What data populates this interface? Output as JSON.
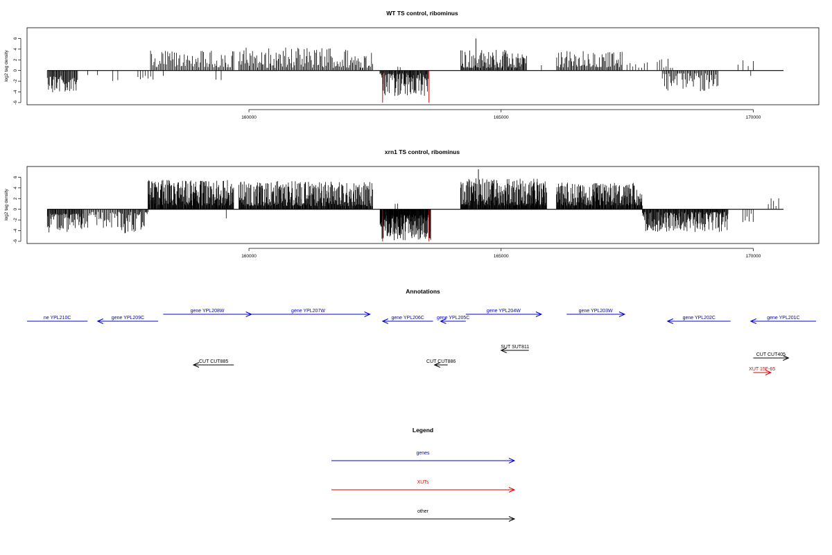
{
  "panels": [
    {
      "title": "WT TS control, ribominus",
      "ylabel": "log2 tag density",
      "y_ticks": [
        -6,
        -4,
        -2,
        0,
        2,
        4,
        6
      ],
      "x_ticks": [
        160000,
        165000,
        170000
      ],
      "mark_color": "#000000",
      "highlight_color": "#cc0000",
      "chart_data": {
        "type": "bar",
        "title": "WT TS control, ribominus",
        "xlabel": "",
        "ylabel": "log2 tag density",
        "xlim": [
          155600,
          171300
        ],
        "ylim": [
          -6.4,
          8
        ],
        "grid": false,
        "segments": [
          {
            "x0": 156000,
            "x1": 156600,
            "sign": -1,
            "count": 45,
            "min": 1.0,
            "max": 4.2
          },
          {
            "x0": 156800,
            "x1": 157000,
            "sign": -1,
            "count": 2,
            "min": 0.8,
            "max": 1.2
          },
          {
            "x0": 157300,
            "x1": 157400,
            "sign": -1,
            "count": 2,
            "min": 1.3,
            "max": 2.0
          },
          {
            "x0": 157800,
            "x1": 158100,
            "sign": -1,
            "count": 7,
            "min": 1.0,
            "max": 1.8
          },
          {
            "x0": 158300,
            "x1": 158300,
            "sign": -1,
            "count": 1,
            "min": 1.0,
            "max": 1.0
          },
          {
            "x0": 158050,
            "x1": 159700,
            "sign": 1,
            "count": 75,
            "min": 0.6,
            "max": 3.8
          },
          {
            "x0": 159350,
            "x1": 159450,
            "sign": -1,
            "count": 2,
            "min": 1.5,
            "max": 2.7
          },
          {
            "x0": 159800,
            "x1": 162450,
            "sign": 1,
            "count": 130,
            "min": 0.5,
            "max": 4.3
          },
          {
            "x0": 162600,
            "x1": 163550,
            "sign": -1,
            "count": 90,
            "min": 0.5,
            "max": 4.8
          },
          {
            "x0": 162950,
            "x1": 163000,
            "sign": 1,
            "count": 2,
            "min": 0.6,
            "max": 0.9
          },
          {
            "x0": 164200,
            "x1": 165500,
            "sign": 1,
            "count": 95,
            "min": 0.5,
            "max": 4.0
          },
          {
            "x0": 165800,
            "x1": 165800,
            "sign": 1,
            "count": 1,
            "min": 1.0,
            "max": 1.0
          },
          {
            "x0": 166100,
            "x1": 167400,
            "sign": 1,
            "count": 70,
            "min": 0.6,
            "max": 3.7
          },
          {
            "x0": 167500,
            "x1": 167900,
            "sign": 1,
            "count": 8,
            "min": 0.5,
            "max": 1.6
          },
          {
            "x0": 168100,
            "x1": 168400,
            "sign": 1,
            "count": 8,
            "min": 0.5,
            "max": 2.5
          },
          {
            "x0": 168200,
            "x1": 169300,
            "sign": -1,
            "count": 55,
            "min": 0.5,
            "max": 3.9
          },
          {
            "x0": 169700,
            "x1": 170000,
            "sign": 1,
            "count": 4,
            "min": 0.8,
            "max": 2.0
          },
          {
            "x0": 169950,
            "x1": 169950,
            "sign": -1,
            "count": 1,
            "min": 1.0,
            "max": 1.0
          }
        ],
        "highlights": [
          {
            "x": 162650,
            "value": -6.0
          },
          {
            "x": 163570,
            "value": -6.0
          }
        ],
        "peaks": [
          {
            "x": 164500,
            "value": 6.0
          }
        ]
      }
    },
    {
      "title": "xrn1 TS control, ribominus",
      "ylabel": "log2 tag density",
      "y_ticks": [
        -6,
        -4,
        -2,
        0,
        2,
        4,
        6
      ],
      "x_ticks": [
        160000,
        165000,
        170000
      ],
      "mark_color": "#000000",
      "highlight_color": "#cc0000",
      "chart_data": {
        "type": "bar",
        "title": "xrn1 TS control, ribominus",
        "xlabel": "",
        "ylabel": "log2 tag density",
        "xlim": [
          155600,
          171300
        ],
        "ylim": [
          -6.4,
          8
        ],
        "grid": false,
        "segments": [
          {
            "x0": 156000,
            "x1": 156700,
            "sign": -1,
            "count": 60,
            "min": 0.8,
            "max": 4.5
          },
          {
            "x0": 156700,
            "x1": 157400,
            "sign": -1,
            "count": 35,
            "min": 0.5,
            "max": 3.5
          },
          {
            "x0": 157400,
            "x1": 158000,
            "sign": -1,
            "count": 40,
            "min": 0.5,
            "max": 4.5
          },
          {
            "x0": 158000,
            "x1": 159700,
            "sign": 1,
            "count": 220,
            "min": 0.7,
            "max": 5.5
          },
          {
            "x0": 159550,
            "x1": 159550,
            "sign": -1,
            "count": 1,
            "min": 1.7,
            "max": 1.7
          },
          {
            "x0": 159800,
            "x1": 162450,
            "sign": 1,
            "count": 320,
            "min": 0.6,
            "max": 5.3
          },
          {
            "x0": 162600,
            "x1": 163600,
            "sign": -1,
            "count": 200,
            "min": 1.0,
            "max": 5.8
          },
          {
            "x0": 162900,
            "x1": 162950,
            "sign": 1,
            "count": 2,
            "min": 1.0,
            "max": 2.0
          },
          {
            "x0": 164200,
            "x1": 165900,
            "sign": 1,
            "count": 260,
            "min": 0.7,
            "max": 5.8
          },
          {
            "x0": 166100,
            "x1": 167800,
            "sign": 1,
            "count": 220,
            "min": 0.7,
            "max": 5.0
          },
          {
            "x0": 167800,
            "x1": 169500,
            "sign": -1,
            "count": 180,
            "min": 0.5,
            "max": 4.3
          },
          {
            "x0": 169800,
            "x1": 170000,
            "sign": -1,
            "count": 6,
            "min": 0.8,
            "max": 2.7
          },
          {
            "x0": 170300,
            "x1": 170500,
            "sign": 1,
            "count": 5,
            "min": 0.6,
            "max": 2.6
          }
        ],
        "highlights": [
          {
            "x": 162650,
            "value": -6.0
          },
          {
            "x": 163570,
            "value": -6.0
          }
        ],
        "peaks": [
          {
            "x": 164550,
            "value": 7.5
          }
        ]
      }
    }
  ],
  "annotations": {
    "title": "Annotations",
    "colors": {
      "genes": "#0000cc",
      "XUTs": "#dd0000",
      "other": "#000000"
    },
    "items": [
      {
        "label": "ne YPL210C",
        "x0": 155600,
        "x1": 156800,
        "dir": "none",
        "cls": "genes",
        "row": 0
      },
      {
        "label": "gene YPL209C",
        "x0": 157000,
        "x1": 158200,
        "dir": "left",
        "cls": "genes",
        "row": 0
      },
      {
        "label": "gene YPL208W",
        "x0": 158300,
        "x1": 160050,
        "dir": "right",
        "cls": "genes",
        "row": -1
      },
      {
        "label": "gene YPL207W",
        "x0": 159950,
        "x1": 162400,
        "dir": "right",
        "cls": "genes",
        "row": -1
      },
      {
        "label": "gene YPL206C",
        "x0": 162650,
        "x1": 163650,
        "dir": "left",
        "cls": "genes",
        "row": 0
      },
      {
        "label": "gene YPL205C",
        "x0": 163800,
        "x1": 164300,
        "dir": "left",
        "cls": "genes",
        "row": 0
      },
      {
        "label": "gene YPL204W",
        "x0": 164300,
        "x1": 165800,
        "dir": "right",
        "cls": "genes",
        "row": -1
      },
      {
        "label": "gene YPL203W",
        "x0": 166300,
        "x1": 167450,
        "dir": "right",
        "cls": "genes",
        "row": -1
      },
      {
        "label": "gene YPL202C",
        "x0": 168300,
        "x1": 169550,
        "dir": "left",
        "cls": "genes",
        "row": 0
      },
      {
        "label": "gene YPL201C",
        "x0": 169950,
        "x1": 171300,
        "dir": "left",
        "cls": "genes",
        "row": 0
      },
      {
        "label": "SUT SUT811",
        "x0": 165000,
        "x1": 165550,
        "dir": "left",
        "cls": "other",
        "row": 2
      },
      {
        "label": "CUT CUT885",
        "x0": 158900,
        "x1": 159700,
        "dir": "left",
        "cls": "other",
        "row": 3
      },
      {
        "label": "CUT CUT886",
        "x0": 163680,
        "x1": 163940,
        "dir": "left",
        "cls": "other",
        "row": 3
      },
      {
        "label": "CUT CUT405",
        "x0": 170000,
        "x1": 170700,
        "dir": "right",
        "cls": "other",
        "row": 2.5
      },
      {
        "label": "XUT 15F-65",
        "x0": 170000,
        "x1": 170350,
        "dir": "right",
        "cls": "XUTs",
        "row": 3.6
      }
    ]
  },
  "legend": {
    "title": "Legend",
    "entries": [
      {
        "label": "genes",
        "color": "#0000cc"
      },
      {
        "label": "XUTs",
        "color": "#dd0000"
      },
      {
        "label": "other",
        "color": "#000000"
      }
    ]
  }
}
